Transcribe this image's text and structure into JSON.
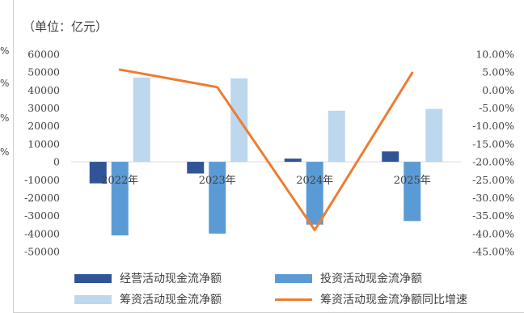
{
  "unit_label": "（单位：亿元）",
  "chart_data": {
    "type": "bar",
    "categories": [
      "2022年",
      "2023年",
      "2024年",
      "2025年"
    ],
    "series": [
      {
        "name": "经营活动现金流净额",
        "kind": "bar",
        "axis": "left",
        "color": "#2f5597",
        "values": [
          -12000,
          -6500,
          1800,
          5800
        ]
      },
      {
        "name": "投资活动现金流净额",
        "kind": "bar",
        "axis": "left",
        "color": "#5b9bd5",
        "values": [
          -41000,
          -40000,
          -35000,
          -33000
        ]
      },
      {
        "name": "筹资活动现金流净额",
        "kind": "bar",
        "axis": "left",
        "color": "#bdd7ee",
        "values": [
          47000,
          46500,
          28500,
          29500
        ]
      },
      {
        "name": "筹资活动现金流净额同比增速",
        "kind": "line",
        "axis": "right",
        "color": "#ed7d31",
        "values": [
          5.7,
          0.8,
          -39.0,
          4.8
        ]
      }
    ],
    "y_left": {
      "ylim": [
        -50000,
        60000
      ],
      "ticks": [
        "60000",
        "50000",
        "40000",
        "30000",
        "20000",
        "10000",
        "0",
        "-10000",
        "-20000",
        "-30000",
        "-40000",
        "-50000"
      ]
    },
    "y_right": {
      "ylim": [
        -45,
        10
      ],
      "ticks": [
        "10.00%",
        "5.00%",
        "0.00%",
        "-5.00%",
        "-10.00%",
        "-15.00%",
        "-20.00%",
        "-25.00%",
        "-30.00%",
        "-35.00%",
        "-40.00%",
        "-45.00%"
      ]
    },
    "grid": false,
    "legend_position": "bottom"
  },
  "colors": {
    "operating": "#2f5597",
    "investing": "#5b9bd5",
    "financing": "#bdd7ee",
    "growth_line": "#ed7d31"
  },
  "edge_marks": [
    "%",
    "%",
    "%",
    "%"
  ]
}
